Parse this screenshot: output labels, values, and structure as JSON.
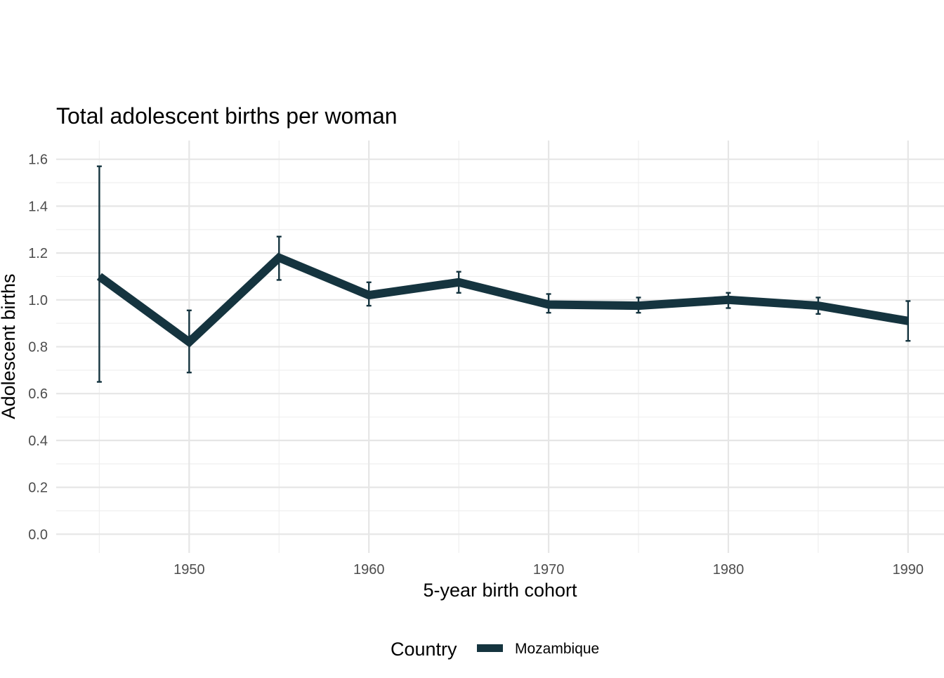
{
  "chart_data": {
    "type": "line",
    "title": "Total adolescent births per woman",
    "xlabel": "5-year birth cohort",
    "ylabel": "Adolescent births",
    "xlim": [
      1942.6,
      1992.0
    ],
    "ylim": [
      -0.08,
      1.68
    ],
    "x_ticks": [
      1950,
      1960,
      1970,
      1980,
      1990
    ],
    "x_tick_labels": [
      "1950",
      "1960",
      "1970",
      "1980",
      "1990"
    ],
    "x_minor_ticks": [
      1945,
      1955,
      1965,
      1975,
      1985
    ],
    "y_ticks": [
      0.0,
      0.2,
      0.4,
      0.6,
      0.8,
      1.0,
      1.2,
      1.4,
      1.6
    ],
    "y_tick_labels": [
      "0.0",
      "0.2",
      "0.4",
      "0.6",
      "0.8",
      "1.0",
      "1.2",
      "1.4",
      "1.6"
    ],
    "grid": true,
    "legend_position": "bottom",
    "legend_title": "Country",
    "series": [
      {
        "name": "Mozambique",
        "color": "#15343f",
        "x": [
          1945,
          1950,
          1955,
          1960,
          1965,
          1970,
          1975,
          1980,
          1985,
          1990
        ],
        "y": [
          1.1,
          0.82,
          1.18,
          1.02,
          1.075,
          0.98,
          0.975,
          1.0,
          0.975,
          0.91
        ],
        "lower": [
          0.65,
          0.69,
          1.085,
          0.975,
          1.03,
          0.945,
          0.945,
          0.965,
          0.94,
          0.825
        ],
        "upper": [
          1.57,
          0.955,
          1.27,
          1.075,
          1.12,
          1.025,
          1.01,
          1.03,
          1.01,
          0.995
        ]
      }
    ]
  }
}
